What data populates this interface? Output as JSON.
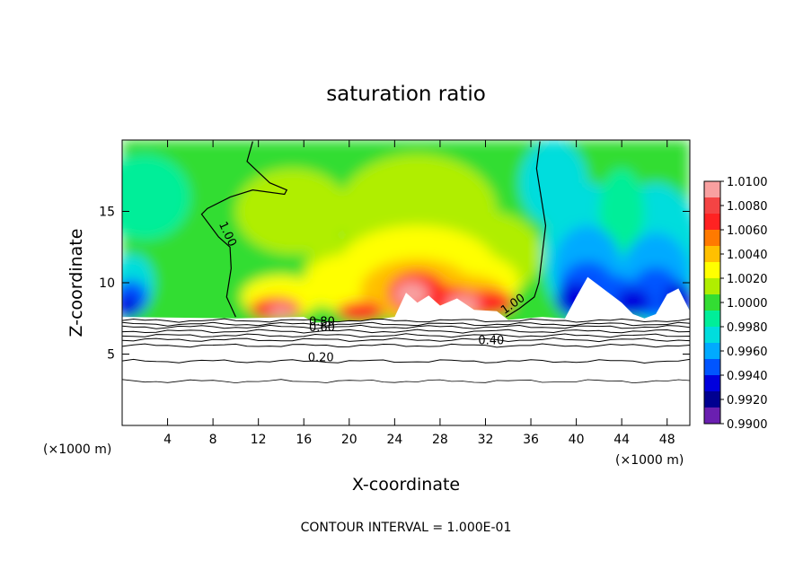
{
  "chart_data": {
    "type": "heatmap",
    "title": "saturation ratio",
    "xlabel": "X-coordinate",
    "ylabel": "Z-coordinate",
    "x_unit": "(×1000 m)",
    "y_unit": "(×1000 m)",
    "xlim": [
      0,
      50
    ],
    "ylim": [
      0,
      20
    ],
    "x_ticks": [
      4,
      8,
      12,
      16,
      20,
      24,
      28,
      32,
      36,
      40,
      44,
      48
    ],
    "y_ticks": [
      5,
      10,
      15
    ],
    "colorbar": {
      "range": [
        0.99,
        1.01
      ],
      "labels": [
        "1.0100",
        "1.0080",
        "1.0060",
        "1.0040",
        "1.0020",
        "1.0000",
        "0.9980",
        "0.9960",
        "0.9940",
        "0.9920",
        "0.9900"
      ],
      "colors": [
        "#f8a0a0",
        "#f44444",
        "#ff2222",
        "#ff7a00",
        "#ffc000",
        "#ffff00",
        "#b0ee00",
        "#33dd33",
        "#00ee99",
        "#00dddd",
        "#00aaff",
        "#0055ff",
        "#0000dd",
        "#000090",
        "#6a1fb0"
      ]
    },
    "contour_labels": [
      {
        "text": "1.00",
        "x": 9.0,
        "z": 13.3,
        "rot": 65
      },
      {
        "text": "1.00",
        "x": 34.6,
        "z": 8.3,
        "rot": -35
      },
      {
        "text": "0.80",
        "x": 17.6,
        "z": 7.0,
        "rot": 0
      },
      {
        "text": "0.60",
        "x": 17.6,
        "z": 6.6,
        "rot": 0
      },
      {
        "text": "0.40",
        "x": 32.5,
        "z": 5.7,
        "rot": 0
      },
      {
        "text": "0.20",
        "x": 17.5,
        "z": 4.5,
        "rot": 0
      }
    ],
    "footer": "CONTOUR INTERVAL = 1.000E-01"
  }
}
